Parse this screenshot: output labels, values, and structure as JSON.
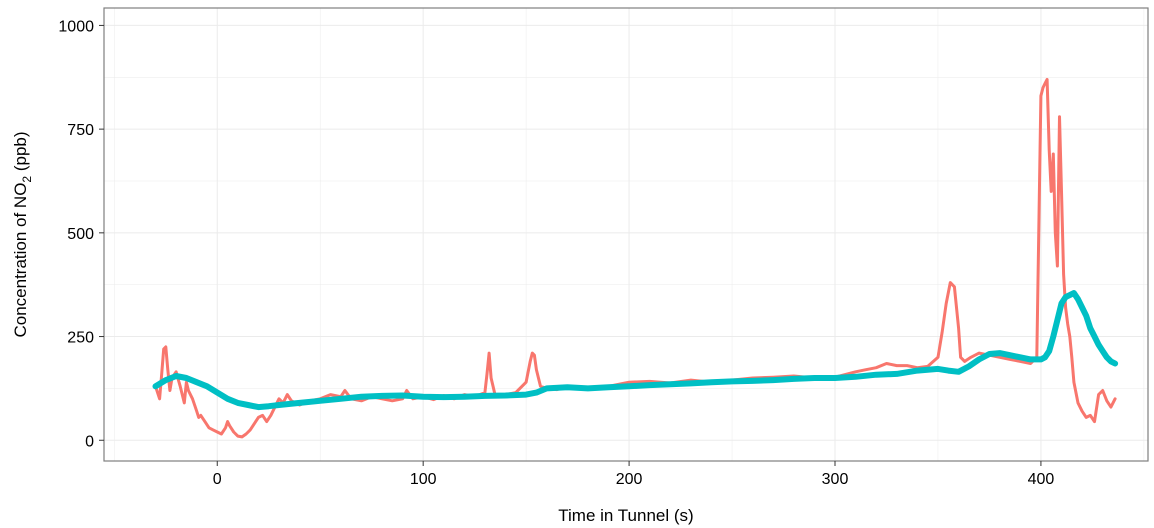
{
  "chart_data": {
    "type": "line",
    "xlabel": "Time in Tunnel (s)",
    "ylabel_parts": [
      "Concentration of NO",
      "2",
      " (ppb)"
    ],
    "xlim": [
      -55,
      452
    ],
    "ylim": [
      -50,
      1042
    ],
    "x_ticks": [
      0,
      100,
      200,
      300,
      400
    ],
    "y_ticks": [
      0,
      250,
      500,
      750,
      1000
    ],
    "grid": true,
    "background": "#ffffff",
    "gridline_color": "#ebebeb",
    "panel_border_color": "#7f7f7f",
    "series": [
      {
        "color": "#f8766d",
        "line_width": 3,
        "x": [
          -30,
          -28,
          -27,
          -26,
          -25,
          -24,
          -23,
          -22,
          -20,
          -18,
          -16,
          -15,
          -14,
          -12,
          -10,
          -9,
          -8,
          -6,
          -4,
          -2,
          0,
          2,
          4,
          5,
          6,
          8,
          10,
          12,
          14,
          16,
          18,
          20,
          22,
          24,
          26,
          28,
          30,
          32,
          34,
          36,
          40,
          45,
          50,
          55,
          60,
          62,
          65,
          70,
          75,
          80,
          85,
          90,
          92,
          95,
          100,
          105,
          110,
          115,
          120,
          125,
          130,
          131,
          132,
          133,
          135,
          140,
          145,
          150,
          152,
          153,
          154,
          155,
          157,
          160,
          165,
          170,
          180,
          190,
          200,
          210,
          220,
          230,
          240,
          250,
          260,
          270,
          280,
          290,
          300,
          310,
          315,
          320,
          325,
          330,
          335,
          340,
          345,
          350,
          352,
          354,
          356,
          358,
          359,
          360,
          361,
          363,
          366,
          370,
          375,
          380,
          385,
          390,
          395,
          398,
          400,
          401,
          402,
          403,
          404,
          405,
          406,
          407,
          408,
          409,
          410,
          411,
          412,
          413,
          414,
          415,
          416,
          418,
          420,
          422,
          424,
          426,
          428,
          430,
          432,
          434,
          436
        ],
        "y": [
          130,
          100,
          160,
          220,
          225,
          170,
          120,
          150,
          165,
          130,
          90,
          140,
          120,
          100,
          70,
          55,
          60,
          45,
          30,
          25,
          20,
          15,
          30,
          45,
          35,
          20,
          10,
          8,
          15,
          25,
          40,
          55,
          60,
          45,
          60,
          80,
          100,
          90,
          110,
          95,
          85,
          95,
          100,
          110,
          105,
          120,
          100,
          95,
          105,
          100,
          95,
          100,
          120,
          100,
          105,
          98,
          108,
          100,
          110,
          105,
          115,
          160,
          210,
          150,
          108,
          110,
          115,
          140,
          190,
          210,
          205,
          170,
          130,
          125,
          122,
          130,
          128,
          130,
          140,
          142,
          138,
          145,
          140,
          145,
          150,
          152,
          155,
          150,
          152,
          165,
          170,
          175,
          185,
          180,
          180,
          175,
          178,
          200,
          260,
          330,
          380,
          370,
          320,
          270,
          200,
          190,
          200,
          210,
          205,
          200,
          195,
          190,
          185,
          200,
          830,
          850,
          860,
          870,
          700,
          600,
          690,
          500,
          420,
          780,
          600,
          400,
          320,
          280,
          250,
          200,
          140,
          90,
          70,
          55,
          60,
          45,
          110,
          120,
          95,
          80,
          100
        ]
      },
      {
        "color": "#00bfc4",
        "line_width": 6,
        "x": [
          -30,
          -25,
          -20,
          -15,
          -10,
          -5,
          0,
          5,
          10,
          15,
          20,
          25,
          30,
          40,
          50,
          60,
          70,
          80,
          90,
          100,
          110,
          120,
          130,
          140,
          150,
          155,
          160,
          170,
          180,
          190,
          200,
          210,
          220,
          230,
          240,
          250,
          260,
          270,
          280,
          290,
          300,
          310,
          320,
          330,
          340,
          350,
          355,
          360,
          365,
          370,
          375,
          380,
          385,
          390,
          395,
          400,
          402,
          404,
          406,
          408,
          410,
          412,
          414,
          416,
          418,
          420,
          422,
          424,
          426,
          428,
          430,
          432,
          434,
          436
        ],
        "y": [
          130,
          145,
          155,
          150,
          140,
          130,
          115,
          100,
          90,
          85,
          80,
          82,
          85,
          90,
          95,
          100,
          105,
          107,
          108,
          105,
          104,
          105,
          107,
          108,
          110,
          115,
          125,
          128,
          125,
          128,
          130,
          133,
          135,
          137,
          140,
          142,
          143,
          145,
          148,
          150,
          150,
          153,
          158,
          160,
          168,
          172,
          168,
          165,
          178,
          195,
          208,
          210,
          205,
          200,
          195,
          195,
          200,
          215,
          250,
          290,
          330,
          345,
          350,
          355,
          340,
          320,
          300,
          270,
          250,
          230,
          215,
          200,
          190,
          185
        ]
      }
    ]
  }
}
